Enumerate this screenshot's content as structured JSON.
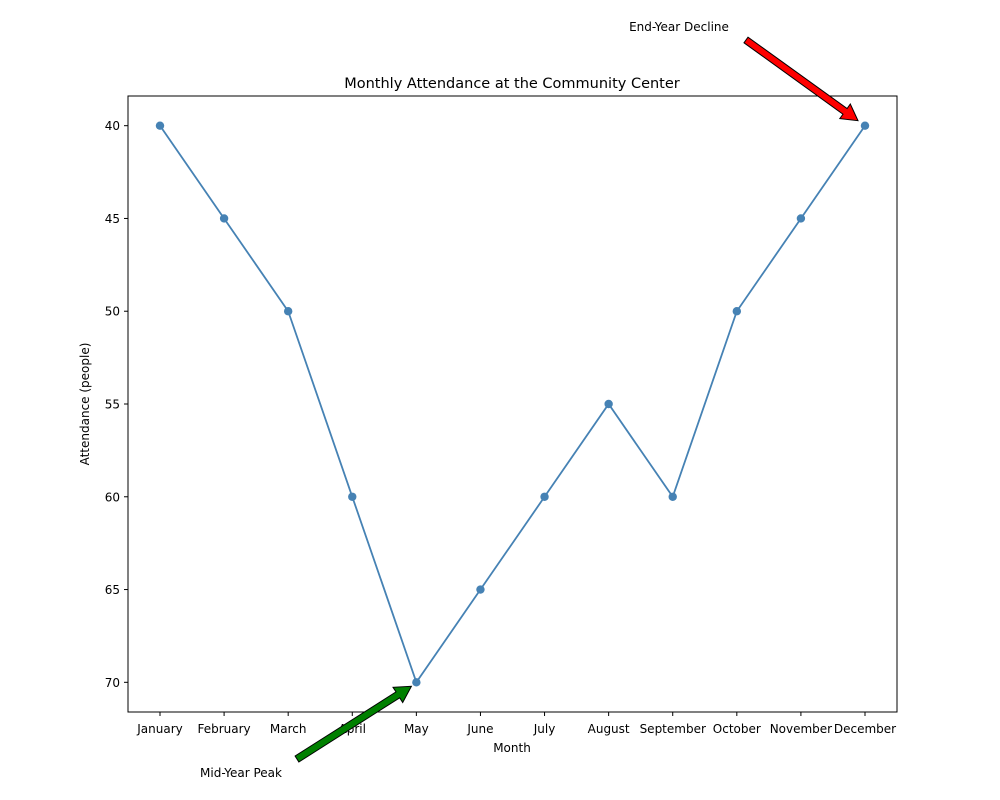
{
  "chart_data": {
    "type": "line",
    "title": "Monthly Attendance at the Community Center",
    "xlabel": "Month",
    "ylabel": "Attendance (people)",
    "categories": [
      "January",
      "February",
      "March",
      "April",
      "May",
      "June",
      "July",
      "August",
      "September",
      "October",
      "November",
      "December"
    ],
    "series": [
      {
        "values": [
          40,
          45,
          50,
          60,
          70,
          65,
          60,
          55,
          60,
          50,
          45,
          40
        ],
        "color": "#4682b4"
      }
    ],
    "y_inverted": true,
    "ylim": [
      38.4,
      71.6
    ],
    "yticks": [
      40,
      45,
      50,
      55,
      60,
      65,
      70
    ],
    "grid": false,
    "annotations": [
      {
        "text": "Mid-Year Peak",
        "target_category": "May",
        "target_value": 70,
        "arrow_color": "#008000",
        "text_position": "below-left"
      },
      {
        "text": "End-Year Decline",
        "target_category": "December",
        "target_value": 40,
        "arrow_color": "#ff0000",
        "text_position": "above-left"
      }
    ]
  }
}
